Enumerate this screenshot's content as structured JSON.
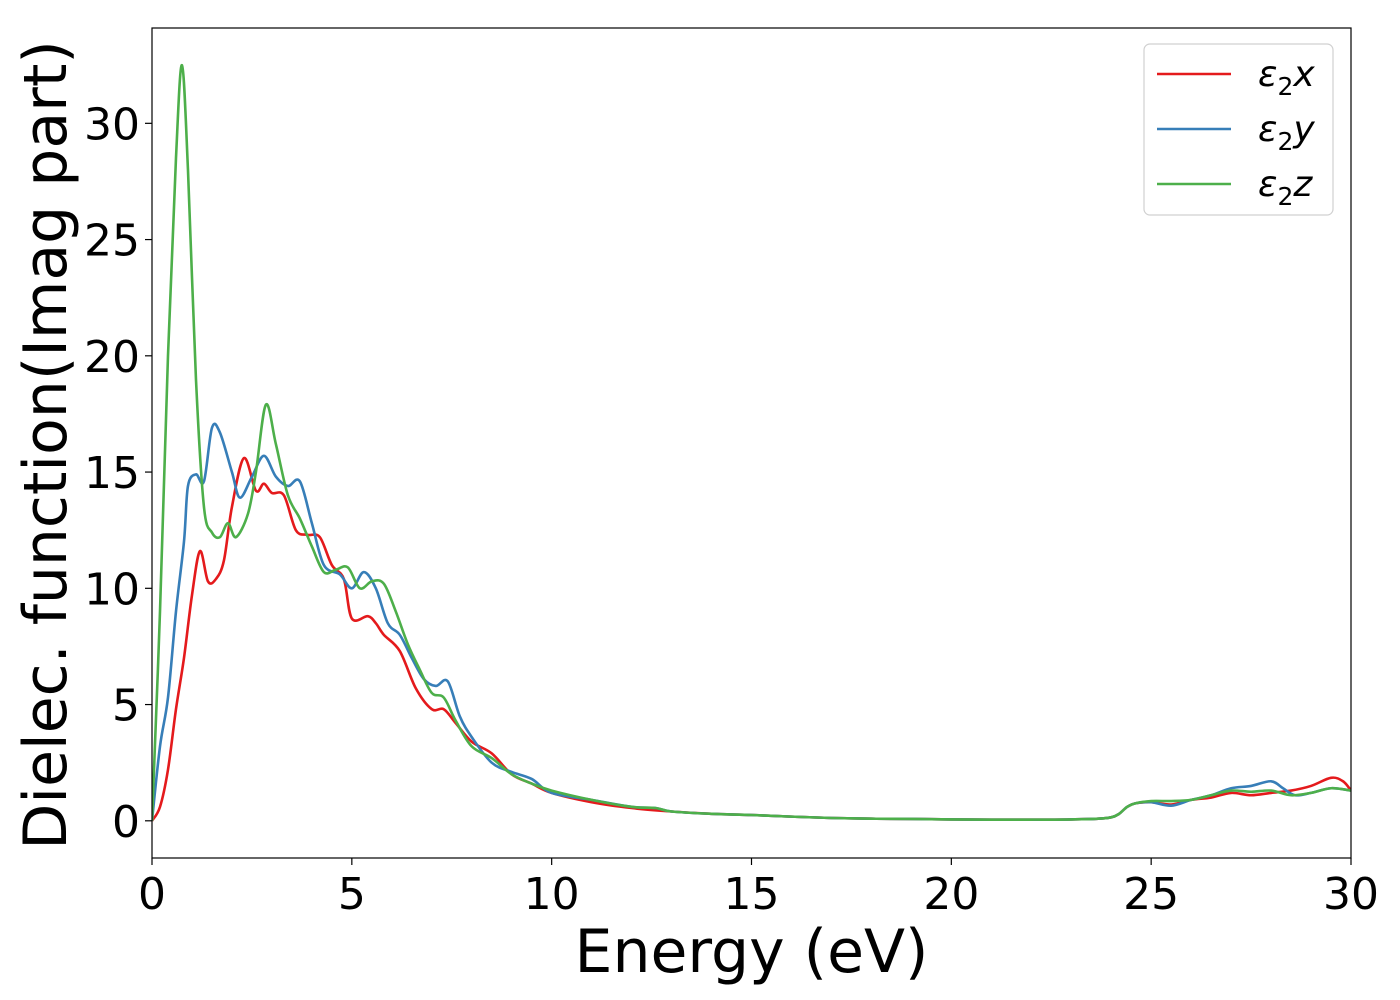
{
  "chart_data": {
    "type": "line",
    "xlabel": "Energy (eV)",
    "ylabel": "Dielec. function(Imag part)",
    "xlim": [
      0,
      30
    ],
    "ylim": [
      -1.6,
      34.1
    ],
    "xticks": [
      0,
      5,
      10,
      15,
      20,
      25,
      30
    ],
    "yticks": [
      0,
      5,
      10,
      15,
      20,
      25,
      30
    ],
    "grid": false,
    "legend_position": "top-right",
    "series": [
      {
        "name": "ε2x",
        "legend_base": "ε",
        "legend_sub": "2",
        "legend_var": "x",
        "color": "#e41a1c",
        "points": [
          [
            0,
            0
          ],
          [
            0.2,
            0.6
          ],
          [
            0.4,
            2.2
          ],
          [
            0.6,
            4.8
          ],
          [
            0.8,
            7.0
          ],
          [
            1.0,
            9.7
          ],
          [
            1.2,
            11.6
          ],
          [
            1.4,
            10.3
          ],
          [
            1.6,
            10.4
          ],
          [
            1.8,
            11.2
          ],
          [
            2.0,
            13.5
          ],
          [
            2.3,
            15.6
          ],
          [
            2.6,
            14.2
          ],
          [
            2.8,
            14.5
          ],
          [
            3.0,
            14.1
          ],
          [
            3.3,
            14.0
          ],
          [
            3.6,
            12.5
          ],
          [
            3.9,
            12.3
          ],
          [
            4.2,
            12.2
          ],
          [
            4.5,
            11.0
          ],
          [
            4.8,
            10.4
          ],
          [
            5.0,
            8.7
          ],
          [
            5.4,
            8.8
          ],
          [
            5.6,
            8.5
          ],
          [
            5.8,
            8.0
          ],
          [
            6.2,
            7.3
          ],
          [
            6.6,
            5.7
          ],
          [
            7.0,
            4.8
          ],
          [
            7.3,
            4.8
          ],
          [
            7.6,
            4.2
          ],
          [
            8.0,
            3.4
          ],
          [
            8.5,
            2.9
          ],
          [
            9.0,
            2.0
          ],
          [
            9.5,
            1.6
          ],
          [
            10,
            1.2
          ],
          [
            11,
            0.8
          ],
          [
            12,
            0.55
          ],
          [
            13,
            0.4
          ],
          [
            14,
            0.3
          ],
          [
            15,
            0.25
          ],
          [
            16,
            0.18
          ],
          [
            17,
            0.12
          ],
          [
            18,
            0.09
          ],
          [
            19,
            0.08
          ],
          [
            20,
            0.06
          ],
          [
            21,
            0.05
          ],
          [
            22,
            0.05
          ],
          [
            23,
            0.06
          ],
          [
            24,
            0.15
          ],
          [
            24.4,
            0.6
          ],
          [
            24.6,
            0.75
          ],
          [
            25,
            0.8
          ],
          [
            25.5,
            0.7
          ],
          [
            26,
            0.9
          ],
          [
            26.5,
            1.0
          ],
          [
            27,
            1.2
          ],
          [
            27.5,
            1.1
          ],
          [
            28,
            1.2
          ],
          [
            28.5,
            1.3
          ],
          [
            29,
            1.5
          ],
          [
            29.5,
            1.85
          ],
          [
            29.8,
            1.7
          ],
          [
            30,
            1.3
          ]
        ]
      },
      {
        "name": "ε2y",
        "legend_base": "ε",
        "legend_sub": "2",
        "legend_var": "y",
        "color": "#377eb8",
        "points": [
          [
            0,
            0
          ],
          [
            0.2,
            3.2
          ],
          [
            0.4,
            5.3
          ],
          [
            0.6,
            9.0
          ],
          [
            0.8,
            12.0
          ],
          [
            0.9,
            14.4
          ],
          [
            1.1,
            14.9
          ],
          [
            1.3,
            14.6
          ],
          [
            1.5,
            16.9
          ],
          [
            1.7,
            16.7
          ],
          [
            2.0,
            15.0
          ],
          [
            2.2,
            13.9
          ],
          [
            2.5,
            14.8
          ],
          [
            2.8,
            15.7
          ],
          [
            3.1,
            14.8
          ],
          [
            3.4,
            14.4
          ],
          [
            3.7,
            14.6
          ],
          [
            4.0,
            12.8
          ],
          [
            4.3,
            11.0
          ],
          [
            4.7,
            10.6
          ],
          [
            5.0,
            10.0
          ],
          [
            5.3,
            10.7
          ],
          [
            5.6,
            10.0
          ],
          [
            5.9,
            8.5
          ],
          [
            6.2,
            8.0
          ],
          [
            6.5,
            7.0
          ],
          [
            6.8,
            6.1
          ],
          [
            7.1,
            5.8
          ],
          [
            7.4,
            6.0
          ],
          [
            7.7,
            4.5
          ],
          [
            8.0,
            3.6
          ],
          [
            8.5,
            2.5
          ],
          [
            9.0,
            2.1
          ],
          [
            9.5,
            1.8
          ],
          [
            10,
            1.2
          ],
          [
            11,
            0.9
          ],
          [
            12,
            0.6
          ],
          [
            12.6,
            0.55
          ],
          [
            13,
            0.4
          ],
          [
            14,
            0.3
          ],
          [
            15,
            0.25
          ],
          [
            16,
            0.18
          ],
          [
            17,
            0.12
          ],
          [
            18,
            0.09
          ],
          [
            19,
            0.08
          ],
          [
            20,
            0.06
          ],
          [
            21,
            0.05
          ],
          [
            22,
            0.05
          ],
          [
            23,
            0.06
          ],
          [
            24,
            0.15
          ],
          [
            24.4,
            0.6
          ],
          [
            24.6,
            0.75
          ],
          [
            25,
            0.8
          ],
          [
            25.5,
            0.65
          ],
          [
            26,
            0.9
          ],
          [
            26.5,
            1.1
          ],
          [
            27,
            1.4
          ],
          [
            27.5,
            1.5
          ],
          [
            28,
            1.7
          ],
          [
            28.3,
            1.4
          ],
          [
            28.6,
            1.1
          ],
          [
            29,
            1.2
          ],
          [
            29.5,
            1.4
          ],
          [
            30,
            1.3
          ]
        ]
      },
      {
        "name": "ε2z",
        "legend_base": "ε",
        "legend_sub": "2",
        "legend_var": "z",
        "color": "#4daf4a",
        "points": [
          [
            0,
            0
          ],
          [
            0.2,
            9.0
          ],
          [
            0.4,
            20.0
          ],
          [
            0.6,
            28.5
          ],
          [
            0.75,
            32.5
          ],
          [
            0.9,
            28.0
          ],
          [
            1.1,
            19.0
          ],
          [
            1.3,
            13.5
          ],
          [
            1.5,
            12.4
          ],
          [
            1.7,
            12.2
          ],
          [
            1.9,
            12.8
          ],
          [
            2.1,
            12.2
          ],
          [
            2.4,
            13.2
          ],
          [
            2.6,
            15.0
          ],
          [
            2.85,
            17.9
          ],
          [
            3.1,
            16.2
          ],
          [
            3.4,
            14.0
          ],
          [
            3.7,
            13.0
          ],
          [
            4.0,
            11.8
          ],
          [
            4.3,
            10.7
          ],
          [
            4.6,
            10.8
          ],
          [
            4.9,
            10.9
          ],
          [
            5.2,
            10.0
          ],
          [
            5.5,
            10.3
          ],
          [
            5.8,
            10.2
          ],
          [
            6.1,
            9.0
          ],
          [
            6.4,
            7.6
          ],
          [
            6.7,
            6.5
          ],
          [
            7.0,
            5.5
          ],
          [
            7.3,
            5.3
          ],
          [
            7.6,
            4.3
          ],
          [
            8.0,
            3.2
          ],
          [
            8.5,
            2.7
          ],
          [
            9.0,
            2.0
          ],
          [
            9.5,
            1.6
          ],
          [
            10,
            1.3
          ],
          [
            11,
            0.9
          ],
          [
            12,
            0.6
          ],
          [
            12.6,
            0.55
          ],
          [
            13,
            0.4
          ],
          [
            14,
            0.3
          ],
          [
            15,
            0.25
          ],
          [
            16,
            0.18
          ],
          [
            17,
            0.12
          ],
          [
            18,
            0.09
          ],
          [
            19,
            0.08
          ],
          [
            20,
            0.06
          ],
          [
            21,
            0.05
          ],
          [
            22,
            0.05
          ],
          [
            23,
            0.06
          ],
          [
            24,
            0.15
          ],
          [
            24.4,
            0.6
          ],
          [
            24.6,
            0.75
          ],
          [
            25,
            0.85
          ],
          [
            25.5,
            0.85
          ],
          [
            26,
            0.9
          ],
          [
            26.5,
            1.1
          ],
          [
            27,
            1.3
          ],
          [
            27.5,
            1.25
          ],
          [
            28,
            1.3
          ],
          [
            28.5,
            1.1
          ],
          [
            29,
            1.2
          ],
          [
            29.5,
            1.4
          ],
          [
            30,
            1.3
          ]
        ]
      }
    ]
  }
}
